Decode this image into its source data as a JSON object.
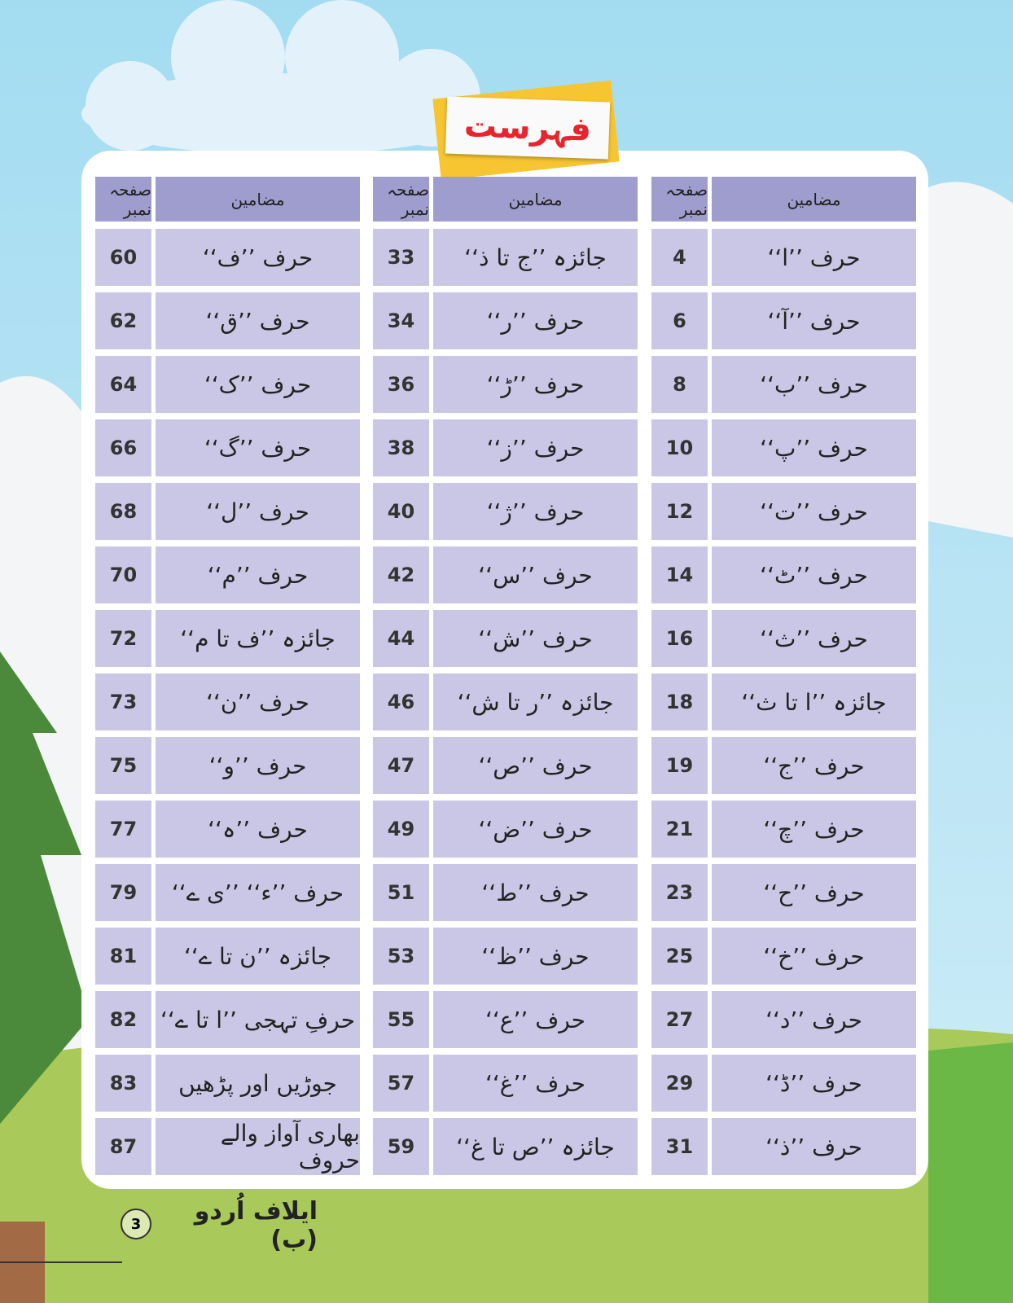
{
  "title": "فہرست",
  "groups": [
    {
      "headers": {
        "subject": "مضامین",
        "page": "صفحہ نمبر"
      },
      "rows": [
        [
          "حرف ’’ا‘‘",
          4
        ],
        [
          "حرف ’’آ‘‘",
          6
        ],
        [
          "حرف ’’ب‘‘",
          8
        ],
        [
          "حرف ’’پ‘‘",
          10
        ],
        [
          "حرف ’’ت‘‘",
          12
        ],
        [
          "حرف ’’ٹ‘‘",
          14
        ],
        [
          "حرف ’’ث‘‘",
          16
        ],
        [
          "جائزہ ’’ا تا ث‘‘",
          18
        ],
        [
          "حرف ’’ج‘‘",
          19
        ],
        [
          "حرف ’’چ‘‘",
          21
        ],
        [
          "حرف ’’ح‘‘",
          23
        ],
        [
          "حرف ’’خ‘‘",
          25
        ],
        [
          "حرف ’’د‘‘",
          27
        ],
        [
          "حرف ’’ڈ‘‘",
          29
        ],
        [
          "حرف ’’ذ‘‘",
          31
        ]
      ]
    },
    {
      "headers": {
        "subject": "مضامین",
        "page": "صفحہ نمبر"
      },
      "rows": [
        [
          "جائزہ ’’ج تا ذ‘‘",
          33
        ],
        [
          "حرف ’’ر‘‘",
          34
        ],
        [
          "حرف ’’ڑ‘‘",
          36
        ],
        [
          "حرف ’’ز‘‘",
          38
        ],
        [
          "حرف ’’ژ‘‘",
          40
        ],
        [
          "حرف ’’س‘‘",
          42
        ],
        [
          "حرف ’’ش‘‘",
          44
        ],
        [
          "جائزہ ’’ر تا ش‘‘",
          46
        ],
        [
          "حرف ’’ص‘‘",
          47
        ],
        [
          "حرف ’’ض‘‘",
          49
        ],
        [
          "حرف ’’ط‘‘",
          51
        ],
        [
          "حرف ’’ظ‘‘",
          53
        ],
        [
          "حرف ’’ع‘‘",
          55
        ],
        [
          "حرف ’’غ‘‘",
          57
        ],
        [
          "جائزہ ’’ص تا غ‘‘",
          59
        ]
      ]
    },
    {
      "headers": {
        "subject": "مضامین",
        "page": "صفحہ نمبر"
      },
      "rows": [
        [
          "حرف ’’ف‘‘",
          60
        ],
        [
          "حرف ’’ق‘‘",
          62
        ],
        [
          "حرف ’’ک‘‘",
          64
        ],
        [
          "حرف ’’گ‘‘",
          66
        ],
        [
          "حرف ’’ل‘‘",
          68
        ],
        [
          "حرف ’’م‘‘",
          70
        ],
        [
          "جائزہ ’’ف تا م‘‘",
          72
        ],
        [
          "حرف ’’ن‘‘",
          73
        ],
        [
          "حرف ’’و‘‘",
          75
        ],
        [
          "حرف ’’ہ‘‘",
          77
        ],
        [
          "حرف ’’ء‘‘ ’’ی ے‘‘",
          79
        ],
        [
          "جائزہ ’’ن تا ے‘‘",
          81
        ],
        [
          "حرفِ تہجی ’’ا تا ے‘‘",
          82
        ],
        [
          "جوڑیں اور پڑھیں",
          83
        ],
        [
          "بھاری آواز والے حروف",
          87
        ]
      ]
    }
  ],
  "footer": {
    "book": "ایلاف اُردو (ب)",
    "page_number": 3
  }
}
